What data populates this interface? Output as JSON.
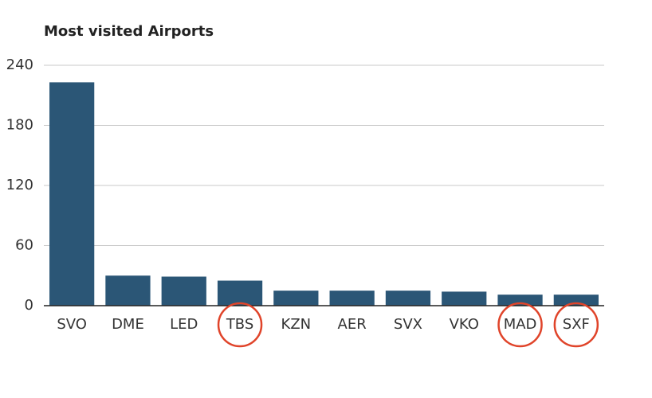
{
  "chart_data": {
    "type": "bar",
    "title": "Most visited Airports",
    "categories": [
      "SVO",
      "DME",
      "LED",
      "TBS",
      "KZN",
      "AER",
      "SVX",
      "VKO",
      "MAD",
      "SXF"
    ],
    "values": [
      223,
      30,
      29,
      25,
      15,
      15,
      15,
      14,
      11,
      11
    ],
    "color": "#2b5676",
    "ylim": [
      0,
      240
    ],
    "yticks": [
      0,
      60,
      120,
      180,
      240
    ],
    "grid": true,
    "highlight": [
      3,
      8,
      9
    ],
    "highlight_color": "#e0442a"
  }
}
